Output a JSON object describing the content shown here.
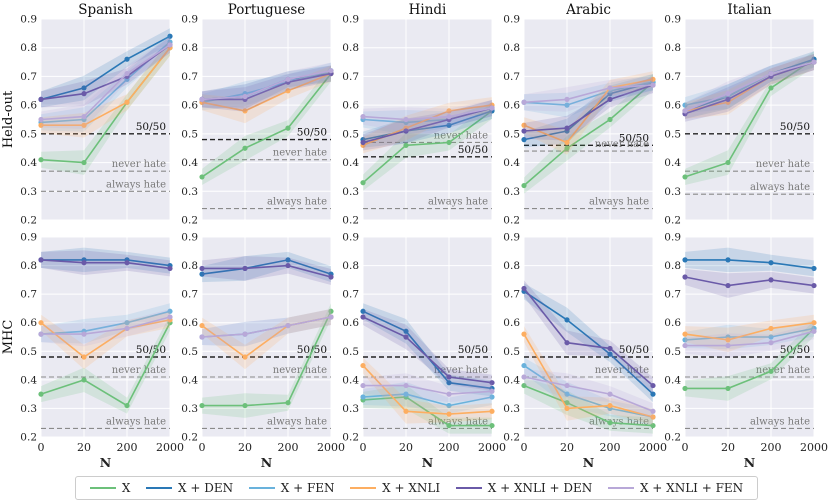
{
  "chart_data": {
    "type": "line",
    "columns": [
      "Spanish",
      "Portuguese",
      "Hindi",
      "Arabic",
      "Italian"
    ],
    "rows": [
      "Held-out",
      "MHC"
    ],
    "xlabel": "N",
    "x_ticks": [
      "0",
      "20",
      "200",
      "2000"
    ],
    "ylim": [
      0.2,
      0.9
    ],
    "y_ticks": [
      "0.2",
      "0.3",
      "0.4",
      "0.5",
      "0.6",
      "0.7",
      "0.8",
      "0.9"
    ],
    "series_names": [
      "X",
      "X + DEN",
      "X + FEN",
      "X + XNLI",
      "X + XNLI + DEN",
      "X + XNLI + FEN"
    ],
    "series_colors": [
      "#6cc07a",
      "#2a78b6",
      "#69b2dc",
      "#fdae61",
      "#6a5aa8",
      "#b8a8d8"
    ],
    "ref_colors": {
      "50/50": "#222222",
      "never hate": "#8a8a8a",
      "always hate": "#8a8a8a"
    },
    "ref_labels": [
      "50/50",
      "never hate",
      "always hate"
    ],
    "panels": [
      {
        "row": "Held-out",
        "column": "Spanish",
        "refs": {
          "50/50": 0.5,
          "never hate": 0.37,
          "always hate": 0.3
        },
        "series": [
          [
            0.41,
            0.4,
            0.61,
            0.8
          ],
          [
            0.62,
            0.66,
            0.76,
            0.84
          ],
          [
            0.54,
            0.55,
            0.69,
            0.82
          ],
          [
            0.53,
            0.53,
            0.61,
            0.8
          ],
          [
            0.62,
            0.64,
            0.7,
            0.81
          ],
          [
            0.55,
            0.56,
            0.71,
            0.81
          ]
        ]
      },
      {
        "row": "Held-out",
        "column": "Portuguese",
        "refs": {
          "50/50": 0.48,
          "never hate": 0.41,
          "always hate": 0.24
        },
        "series": [
          [
            0.35,
            0.45,
            0.52,
            0.71
          ],
          [
            0.62,
            0.63,
            0.69,
            0.71
          ],
          [
            0.61,
            0.64,
            0.68,
            0.72
          ],
          [
            0.61,
            0.58,
            0.65,
            0.71
          ],
          [
            0.62,
            0.62,
            0.68,
            0.71
          ],
          [
            0.62,
            0.63,
            0.69,
            0.72
          ]
        ]
      },
      {
        "row": "Held-out",
        "column": "Hindi",
        "refs": {
          "50/50": 0.42,
          "never hate": 0.47,
          "always hate": 0.24
        },
        "series": [
          [
            0.33,
            0.46,
            0.47,
            0.58
          ],
          [
            0.48,
            0.51,
            0.53,
            0.58
          ],
          [
            0.55,
            0.54,
            0.55,
            0.59
          ],
          [
            0.46,
            0.52,
            0.58,
            0.6
          ],
          [
            0.47,
            0.51,
            0.55,
            0.59
          ],
          [
            0.56,
            0.55,
            0.56,
            0.59
          ]
        ]
      },
      {
        "row": "Held-out",
        "column": "Arabic",
        "refs": {
          "50/50": 0.46,
          "never hate": 0.44,
          "always hate": 0.24
        },
        "series": [
          [
            0.32,
            0.45,
            0.55,
            0.68
          ],
          [
            0.48,
            0.51,
            0.64,
            0.68
          ],
          [
            0.61,
            0.6,
            0.65,
            0.68
          ],
          [
            0.53,
            0.47,
            0.66,
            0.69
          ],
          [
            0.51,
            0.52,
            0.62,
            0.67
          ],
          [
            0.61,
            0.62,
            0.66,
            0.67
          ]
        ]
      },
      {
        "row": "Held-out",
        "column": "Italian",
        "refs": {
          "50/50": 0.5,
          "never hate": 0.37,
          "always hate": 0.29
        },
        "series": [
          [
            0.35,
            0.4,
            0.66,
            0.76
          ],
          [
            0.58,
            0.63,
            0.71,
            0.76
          ],
          [
            0.6,
            0.63,
            0.71,
            0.75
          ],
          [
            0.58,
            0.61,
            0.7,
            0.75
          ],
          [
            0.57,
            0.62,
            0.7,
            0.75
          ],
          [
            0.58,
            0.64,
            0.71,
            0.75
          ]
        ]
      },
      {
        "row": "MHC",
        "column": "Spanish",
        "refs": {
          "50/50": 0.48,
          "never hate": 0.41,
          "always hate": 0.23
        },
        "series": [
          [
            0.35,
            0.4,
            0.31,
            0.6
          ],
          [
            0.82,
            0.82,
            0.82,
            0.8
          ],
          [
            0.56,
            0.57,
            0.6,
            0.64
          ],
          [
            0.6,
            0.48,
            0.58,
            0.61
          ],
          [
            0.82,
            0.81,
            0.81,
            0.79
          ],
          [
            0.56,
            0.56,
            0.58,
            0.62
          ]
        ]
      },
      {
        "row": "MHC",
        "column": "Portuguese",
        "refs": {
          "50/50": 0.48,
          "never hate": 0.41,
          "always hate": 0.23
        },
        "series": [
          [
            0.31,
            0.31,
            0.32,
            0.64
          ],
          [
            0.77,
            0.79,
            0.82,
            0.77
          ],
          [
            0.55,
            0.56,
            0.59,
            0.62
          ],
          [
            0.59,
            0.48,
            0.59,
            0.62
          ],
          [
            0.79,
            0.79,
            0.8,
            0.76
          ],
          [
            0.55,
            0.56,
            0.59,
            0.62
          ]
        ]
      },
      {
        "row": "MHC",
        "column": "Hindi",
        "refs": {
          "50/50": 0.48,
          "never hate": 0.41,
          "always hate": 0.23
        },
        "series": [
          [
            0.33,
            0.34,
            0.24,
            0.24
          ],
          [
            0.64,
            0.57,
            0.39,
            0.37
          ],
          [
            0.34,
            0.35,
            0.31,
            0.34
          ],
          [
            0.45,
            0.29,
            0.28,
            0.29
          ],
          [
            0.62,
            0.55,
            0.41,
            0.39
          ],
          [
            0.38,
            0.38,
            0.35,
            0.36
          ]
        ]
      },
      {
        "row": "MHC",
        "column": "Arabic",
        "refs": {
          "50/50": 0.48,
          "never hate": 0.41,
          "always hate": 0.23
        },
        "series": [
          [
            0.38,
            0.32,
            0.25,
            0.24
          ],
          [
            0.71,
            0.61,
            0.49,
            0.35
          ],
          [
            0.45,
            0.35,
            0.3,
            0.27
          ],
          [
            0.56,
            0.3,
            0.31,
            0.27
          ],
          [
            0.72,
            0.53,
            0.51,
            0.38
          ],
          [
            0.41,
            0.38,
            0.35,
            0.29
          ]
        ]
      },
      {
        "row": "MHC",
        "column": "Italian",
        "refs": {
          "50/50": 0.48,
          "never hate": 0.41,
          "always hate": 0.23
        },
        "series": [
          [
            0.37,
            0.37,
            0.43,
            0.58
          ],
          [
            0.82,
            0.82,
            0.81,
            0.79
          ],
          [
            0.54,
            0.55,
            0.55,
            0.58
          ],
          [
            0.56,
            0.54,
            0.58,
            0.6
          ],
          [
            0.76,
            0.73,
            0.75,
            0.73
          ],
          [
            0.52,
            0.52,
            0.53,
            0.57
          ]
        ]
      }
    ]
  }
}
